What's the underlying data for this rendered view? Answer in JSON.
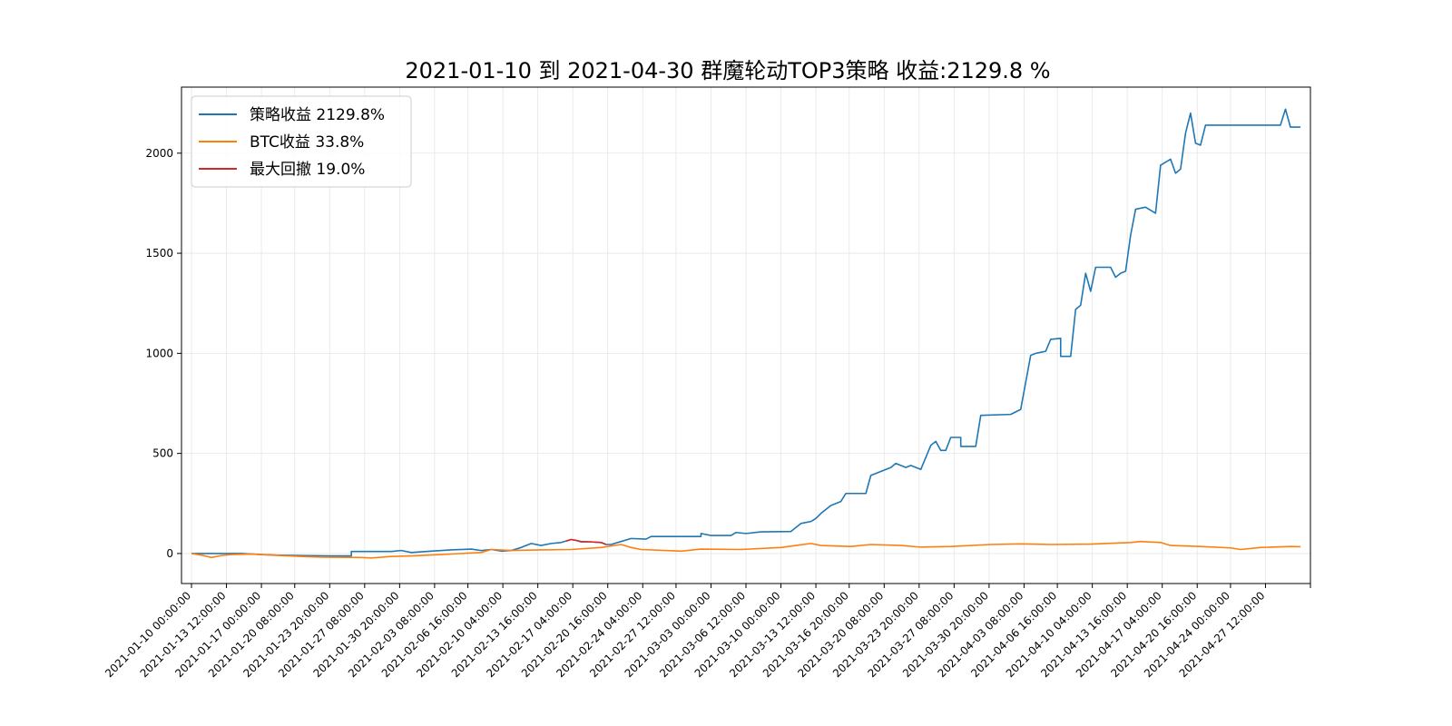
{
  "chart_data": {
    "type": "line",
    "title": "2021-01-10 到 2021-04-30  群魔轮动TOP3策略    收益:2129.8 %",
    "xlabel": "",
    "ylabel": "",
    "xlim": [
      "2021-01-09 00:00:00",
      "2021-05-02 00:00:00"
    ],
    "ylim": [
      -150,
      2330
    ],
    "grid": true,
    "legend_position": "top-left",
    "x_ticks": [
      "2021-01-10 00:00:00",
      "2021-01-13 12:00:00",
      "2021-01-17 00:00:00",
      "2021-01-20 08:00:00",
      "2021-01-23 20:00:00",
      "2021-01-27 08:00:00",
      "2021-01-30 20:00:00",
      "2021-02-03 08:00:00",
      "2021-02-06 16:00:00",
      "2021-02-10 04:00:00",
      "2021-02-13 16:00:00",
      "2021-02-17 04:00:00",
      "2021-02-20 16:00:00",
      "2021-02-24 04:00:00",
      "2021-02-27 12:00:00",
      "2021-03-03 00:00:00",
      "2021-03-06 12:00:00",
      "2021-03-10 00:00:00",
      "2021-03-13 12:00:00",
      "2021-03-16 20:00:00",
      "2021-03-20 08:00:00",
      "2021-03-23 20:00:00",
      "2021-03-27 08:00:00",
      "2021-03-30 20:00:00",
      "2021-04-03 08:00:00",
      "2021-04-06 16:00:00",
      "2021-04-10 04:00:00",
      "2021-04-13 16:00:00",
      "2021-04-17 04:00:00",
      "2021-04-20 16:00:00",
      "2021-04-24 00:00:00",
      "2021-04-27 12:00:00"
    ],
    "y_ticks": [
      0,
      500,
      1000,
      1500,
      2000
    ],
    "series": [
      {
        "name": "策略收益 2129.8%",
        "color": "#1f77b4",
        "points": [
          [
            "2021-01-10 00:00:00",
            0
          ],
          [
            "2021-01-12 00:00:00",
            0
          ],
          [
            "2021-01-15 00:00:00",
            0
          ],
          [
            "2021-01-17 00:00:00",
            -5
          ],
          [
            "2021-01-18 12:00:00",
            -8
          ],
          [
            "2021-01-21 00:00:00",
            -10
          ],
          [
            "2021-01-24 00:00:00",
            -12
          ],
          [
            "2021-01-26 00:00:00",
            -12
          ],
          [
            "2021-01-26 00:00:00",
            10
          ],
          [
            "2021-01-30 00:00:00",
            10
          ],
          [
            "2021-01-31 00:00:00",
            15
          ],
          [
            "2021-02-01 00:00:00",
            5
          ],
          [
            "2021-02-03 00:00:00",
            12
          ],
          [
            "2021-02-05 00:00:00",
            18
          ],
          [
            "2021-02-07 00:00:00",
            22
          ],
          [
            "2021-02-08 00:00:00",
            15
          ],
          [
            "2021-02-09 00:00:00",
            20
          ],
          [
            "2021-02-10 00:00:00",
            12
          ],
          [
            "2021-02-11 00:00:00",
            15
          ],
          [
            "2021-02-12 00:00:00",
            30
          ],
          [
            "2021-02-13 00:00:00",
            50
          ],
          [
            "2021-02-14 00:00:00",
            40
          ],
          [
            "2021-02-15 00:00:00",
            50
          ],
          [
            "2021-02-16 00:00:00",
            55
          ],
          [
            "2021-02-17 00:00:00",
            70
          ],
          [
            "2021-02-18 00:00:00",
            60
          ],
          [
            "2021-02-19 00:00:00",
            58
          ],
          [
            "2021-02-20 00:00:00",
            55
          ],
          [
            "2021-02-20 12:00:00",
            45
          ],
          [
            "2021-02-21 00:00:00",
            45
          ],
          [
            "2021-02-22 00:00:00",
            60
          ],
          [
            "2021-02-23 00:00:00",
            75
          ],
          [
            "2021-02-24 12:00:00",
            72
          ],
          [
            "2021-02-25 00:00:00",
            85
          ],
          [
            "2021-03-01 00:00:00",
            85
          ],
          [
            "2021-03-02 00:00:00",
            85
          ],
          [
            "2021-03-02 00:00:00",
            100
          ],
          [
            "2021-03-03 00:00:00",
            90
          ],
          [
            "2021-03-05 00:00:00",
            90
          ],
          [
            "2021-03-05 12:00:00",
            105
          ],
          [
            "2021-03-06 12:00:00",
            100
          ],
          [
            "2021-03-08 00:00:00",
            108
          ],
          [
            "2021-03-11 00:00:00",
            110
          ],
          [
            "2021-03-12 00:00:00",
            150
          ],
          [
            "2021-03-13 00:00:00",
            160
          ],
          [
            "2021-03-13 12:00:00",
            175
          ],
          [
            "2021-03-14 00:00:00",
            200
          ],
          [
            "2021-03-15 00:00:00",
            240
          ],
          [
            "2021-03-16 00:00:00",
            260
          ],
          [
            "2021-03-16 12:00:00",
            300
          ],
          [
            "2021-03-18 12:00:00",
            300
          ],
          [
            "2021-03-19 00:00:00",
            390
          ],
          [
            "2021-03-20 00:00:00",
            410
          ],
          [
            "2021-03-21 00:00:00",
            430
          ],
          [
            "2021-03-21 12:00:00",
            450
          ],
          [
            "2021-03-22 12:00:00",
            430
          ],
          [
            "2021-03-23 00:00:00",
            440
          ],
          [
            "2021-03-24 00:00:00",
            420
          ],
          [
            "2021-03-24 12:00:00",
            480
          ],
          [
            "2021-03-25 00:00:00",
            540
          ],
          [
            "2021-03-25 12:00:00",
            560
          ],
          [
            "2021-03-26 00:00:00",
            515
          ],
          [
            "2021-03-26 12:00:00",
            515
          ],
          [
            "2021-03-27 00:00:00",
            580
          ],
          [
            "2021-03-28 00:00:00",
            580
          ],
          [
            "2021-03-28 00:00:00",
            535
          ],
          [
            "2021-03-29 12:00:00",
            535
          ],
          [
            "2021-03-30 00:00:00",
            690
          ],
          [
            "2021-04-02 00:00:00",
            695
          ],
          [
            "2021-04-03 00:00:00",
            720
          ],
          [
            "2021-04-04 00:00:00",
            990
          ],
          [
            "2021-04-04 12:00:00",
            1000
          ],
          [
            "2021-04-05 12:00:00",
            1010
          ],
          [
            "2021-04-06 00:00:00",
            1070
          ],
          [
            "2021-04-07 00:00:00",
            1075
          ],
          [
            "2021-04-07 00:00:00",
            985
          ],
          [
            "2021-04-08 00:00:00",
            985
          ],
          [
            "2021-04-08 12:00:00",
            1220
          ],
          [
            "2021-04-09 00:00:00",
            1240
          ],
          [
            "2021-04-09 12:00:00",
            1400
          ],
          [
            "2021-04-10 00:00:00",
            1310
          ],
          [
            "2021-04-10 12:00:00",
            1430
          ],
          [
            "2021-04-12 00:00:00",
            1430
          ],
          [
            "2021-04-12 12:00:00",
            1380
          ],
          [
            "2021-04-13 00:00:00",
            1400
          ],
          [
            "2021-04-13 12:00:00",
            1410
          ],
          [
            "2021-04-14 00:00:00",
            1590
          ],
          [
            "2021-04-14 12:00:00",
            1720
          ],
          [
            "2021-04-15 12:00:00",
            1730
          ],
          [
            "2021-04-16 12:00:00",
            1700
          ],
          [
            "2021-04-17 00:00:00",
            1940
          ],
          [
            "2021-04-18 00:00:00",
            1970
          ],
          [
            "2021-04-18 12:00:00",
            1900
          ],
          [
            "2021-04-19 00:00:00",
            1920
          ],
          [
            "2021-04-19 12:00:00",
            2100
          ],
          [
            "2021-04-20 00:00:00",
            2200
          ],
          [
            "2021-04-20 12:00:00",
            2050
          ],
          [
            "2021-04-21 00:00:00",
            2040
          ],
          [
            "2021-04-21 12:00:00",
            2140
          ],
          [
            "2021-04-29 00:00:00",
            2140
          ],
          [
            "2021-04-29 12:00:00",
            2220
          ],
          [
            "2021-04-30 00:00:00",
            2130
          ],
          [
            "2021-05-01 00:00:00",
            2130
          ]
        ]
      },
      {
        "name": "BTC收益  33.8%",
        "color": "#ff7f0e",
        "points": [
          [
            "2021-01-10 00:00:00",
            0
          ],
          [
            "2021-01-11 00:00:00",
            -8
          ],
          [
            "2021-01-12 00:00:00",
            -20
          ],
          [
            "2021-01-13 00:00:00",
            -10
          ],
          [
            "2021-01-14 00:00:00",
            -5
          ],
          [
            "2021-01-16 00:00:00",
            -3
          ],
          [
            "2021-01-18 00:00:00",
            -8
          ],
          [
            "2021-01-21 00:00:00",
            -15
          ],
          [
            "2021-01-23 00:00:00",
            -18
          ],
          [
            "2021-01-27 00:00:00",
            -20
          ],
          [
            "2021-01-28 00:00:00",
            -22
          ],
          [
            "2021-01-30 00:00:00",
            -15
          ],
          [
            "2021-02-01 00:00:00",
            -12
          ],
          [
            "2021-02-04 00:00:00",
            -5
          ],
          [
            "2021-02-08 00:00:00",
            5
          ],
          [
            "2021-02-09 00:00:00",
            20
          ],
          [
            "2021-02-11 00:00:00",
            15
          ],
          [
            "2021-02-14 00:00:00",
            18
          ],
          [
            "2021-02-17 00:00:00",
            20
          ],
          [
            "2021-02-20 00:00:00",
            30
          ],
          [
            "2021-02-22 00:00:00",
            45
          ],
          [
            "2021-02-23 00:00:00",
            30
          ],
          [
            "2021-02-24 00:00:00",
            20
          ],
          [
            "2021-02-28 00:00:00",
            12
          ],
          [
            "2021-03-02 00:00:00",
            22
          ],
          [
            "2021-03-06 00:00:00",
            20
          ],
          [
            "2021-03-10 00:00:00",
            30
          ],
          [
            "2021-03-13 00:00:00",
            50
          ],
          [
            "2021-03-14 00:00:00",
            40
          ],
          [
            "2021-03-17 00:00:00",
            35
          ],
          [
            "2021-03-19 00:00:00",
            45
          ],
          [
            "2021-03-22 00:00:00",
            40
          ],
          [
            "2021-03-24 00:00:00",
            32
          ],
          [
            "2021-03-27 00:00:00",
            35
          ],
          [
            "2021-03-31 00:00:00",
            45
          ],
          [
            "2021-04-03 00:00:00",
            48
          ],
          [
            "2021-04-06 00:00:00",
            45
          ],
          [
            "2021-04-10 00:00:00",
            47
          ],
          [
            "2021-04-14 00:00:00",
            55
          ],
          [
            "2021-04-15 00:00:00",
            60
          ],
          [
            "2021-04-17 00:00:00",
            55
          ],
          [
            "2021-04-18 00:00:00",
            40
          ],
          [
            "2021-04-21 00:00:00",
            35
          ],
          [
            "2021-04-24 00:00:00",
            28
          ],
          [
            "2021-04-25 00:00:00",
            20
          ],
          [
            "2021-04-27 00:00:00",
            30
          ],
          [
            "2021-04-30 00:00:00",
            35
          ],
          [
            "2021-05-01 00:00:00",
            34
          ]
        ]
      },
      {
        "name": "最大回撤 19.0%",
        "color": "#d62728",
        "points": [
          [
            "2021-02-16 12:00:00",
            62
          ],
          [
            "2021-02-17 00:00:00",
            70
          ],
          [
            "2021-02-17 12:00:00",
            66
          ],
          [
            "2021-02-18 00:00:00",
            58
          ],
          [
            "2021-02-19 00:00:00",
            58
          ],
          [
            "2021-02-20 00:00:00",
            55
          ],
          [
            "2021-02-20 12:00:00",
            45
          ]
        ]
      }
    ]
  }
}
